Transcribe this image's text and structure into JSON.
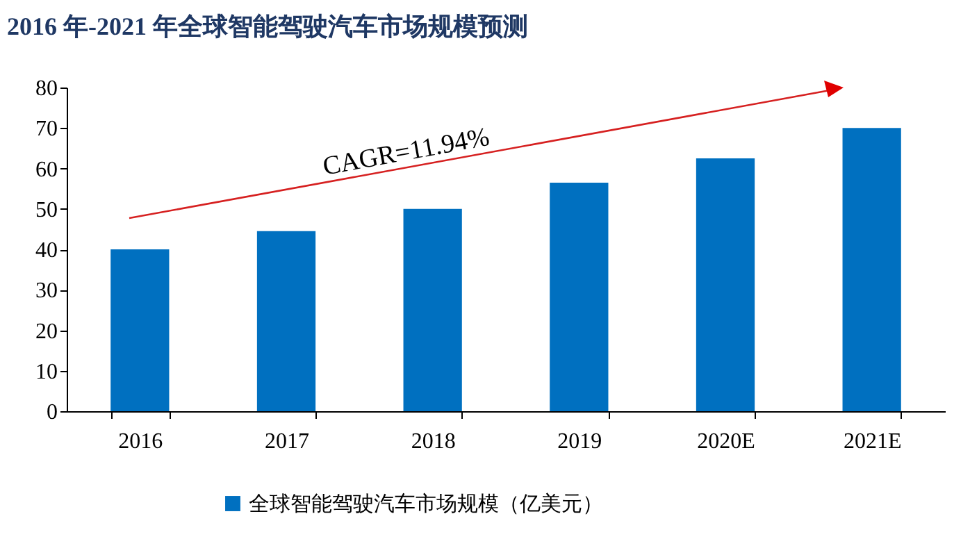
{
  "chart_data": {
    "type": "bar",
    "title": "2016 年-2021 年全球智能驾驶汽车市场规模预测",
    "categories": [
      "2016",
      "2017",
      "2018",
      "2019",
      "2020E",
      "2021E"
    ],
    "series": [
      {
        "name": "全球智能驾驶汽车市场规模（亿美元）",
        "color": "#0070c0",
        "values": [
          40,
          44.5,
          50,
          56.5,
          62.5,
          70
        ]
      }
    ],
    "ylim": [
      0,
      80
    ],
    "yticks": [
      0,
      10,
      20,
      30,
      40,
      50,
      60,
      70,
      80
    ],
    "grid": false,
    "legend": "bottom",
    "annotations": [
      "CAGR=11.94%"
    ]
  }
}
